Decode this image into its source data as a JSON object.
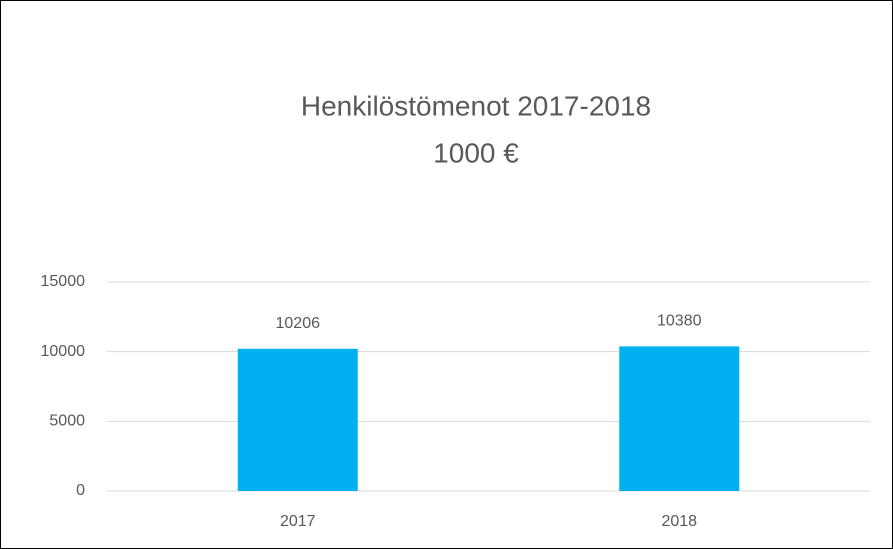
{
  "chart_data": {
    "type": "bar",
    "title": "Henkilöstömenot 2017-2018",
    "subtitle": "1000 €",
    "categories": [
      "2017",
      "2018"
    ],
    "values": [
      10206,
      10380
    ],
    "color": "#00b0f0",
    "ylim": [
      0,
      15000
    ],
    "yticks": [
      0,
      5000,
      10000,
      15000
    ],
    "grid": true,
    "data_labels": true
  }
}
